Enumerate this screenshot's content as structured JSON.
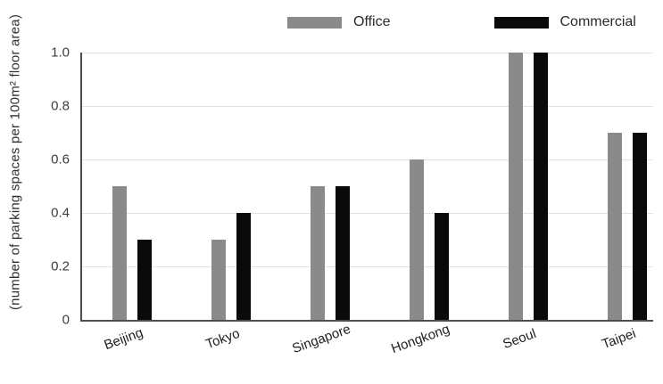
{
  "chart_data": {
    "type": "bar",
    "title": "",
    "xlabel": "",
    "ylabel": "(number of parking spaces per 100m² floor area)",
    "categories": [
      "Beijing",
      "Tokyo",
      "Singapore",
      "Hongkong",
      "Seoul",
      "Taipei"
    ],
    "series": [
      {
        "name": "Office",
        "color": "#8a8a8a",
        "values": [
          0.5,
          0.3,
          0.5,
          0.6,
          1.0,
          0.7
        ]
      },
      {
        "name": "Commercial",
        "color": "#0a0a0a",
        "values": [
          0.3,
          0.4,
          0.5,
          0.4,
          1.0,
          0.7
        ]
      }
    ],
    "ylim": [
      0,
      1.0
    ],
    "yticks": [
      {
        "value": 1.0,
        "label": "1.0"
      },
      {
        "value": 0.8,
        "label": "0.8"
      },
      {
        "value": 0.6,
        "label": "0.6"
      },
      {
        "value": 0.4,
        "label": "0.4"
      },
      {
        "value": 0.2,
        "label": "0.2"
      },
      {
        "value": 0.0,
        "label": "0"
      }
    ],
    "grid": true,
    "legend_position": "top"
  },
  "colors": {
    "axis": "#4d4d4d",
    "grid": "#e2e2e2",
    "tick_text": "#3d3d3d"
  }
}
